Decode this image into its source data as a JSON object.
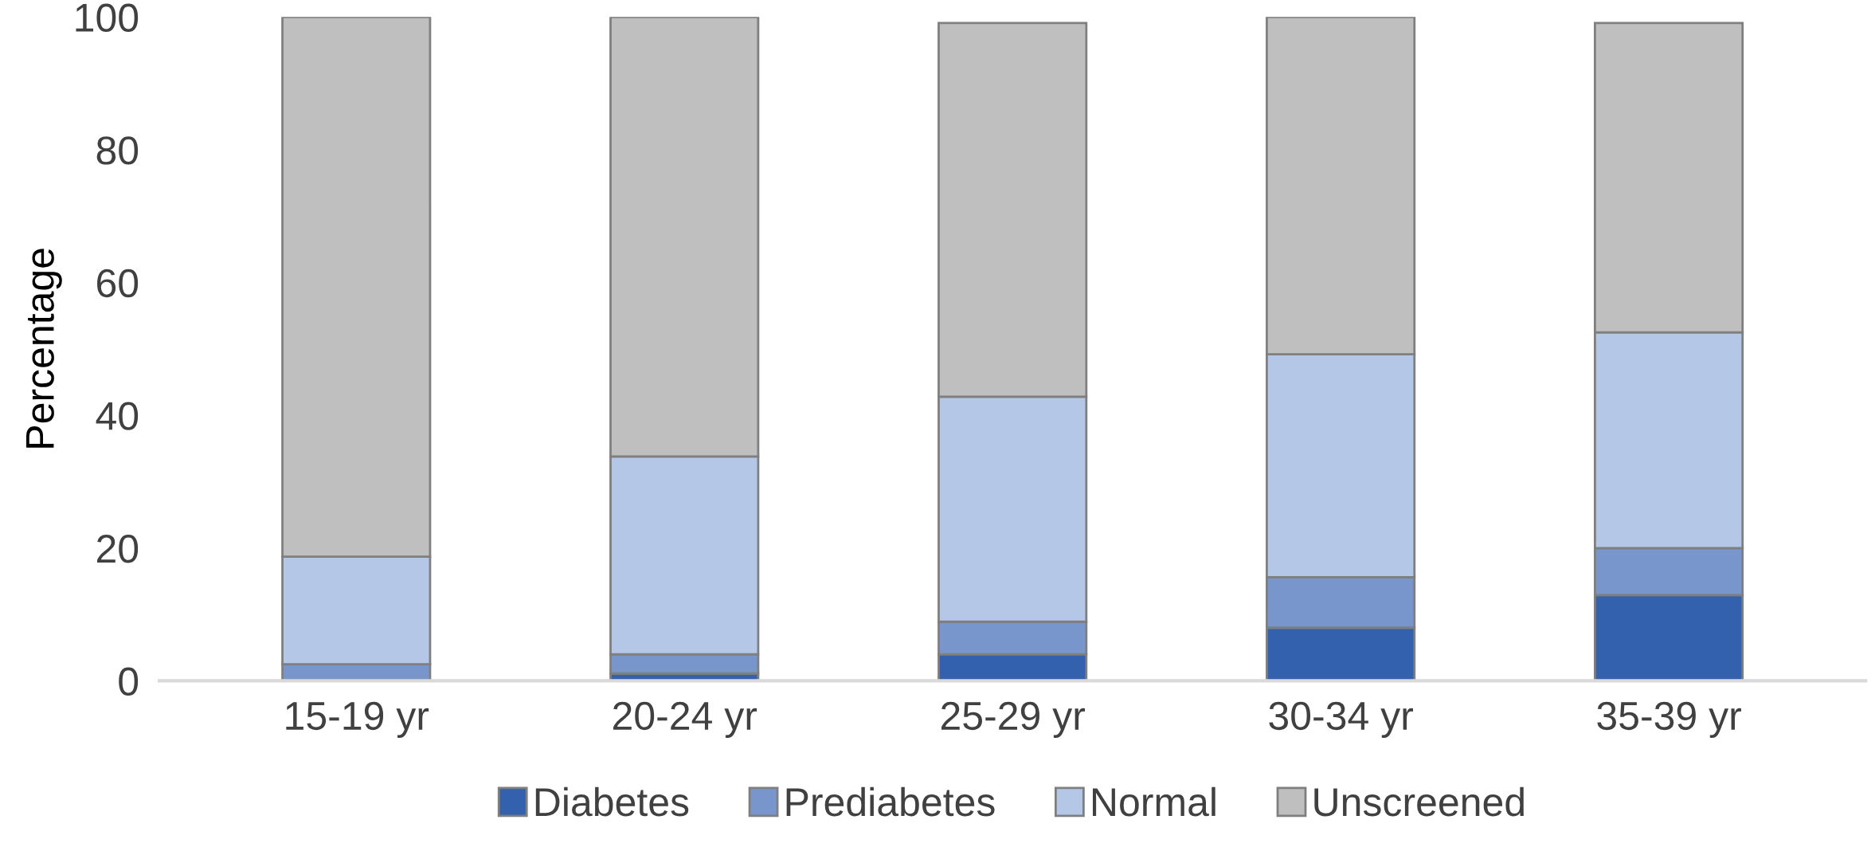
{
  "chart_data": {
    "type": "bar",
    "stacked": true,
    "ylabel": "Percentage",
    "categories": [
      "15-19 yr",
      "20-24 yr",
      "25-29 yr",
      "30-34 yr",
      "35-39 yr"
    ],
    "series": [
      {
        "name": "Diabetes",
        "color": "#3361ad",
        "values": [
          0,
          1.1,
          4.0,
          8.0,
          12.9
        ]
      },
      {
        "name": "Prediabetes",
        "color": "#7896cb",
        "values": [
          2.5,
          2.9,
          4.9,
          7.6,
          7.1
        ]
      },
      {
        "name": "Normal",
        "color": "#b4c7e7",
        "values": [
          16.2,
          29.8,
          33.9,
          33.6,
          32.5
        ]
      },
      {
        "name": "Unscreened",
        "color": "#bfbfbf",
        "values": [
          81.3,
          66.2,
          56.3,
          50.8,
          46.6
        ]
      }
    ],
    "ylim": [
      0,
      100
    ],
    "yticks": [
      0,
      20,
      40,
      60,
      80,
      100
    ],
    "grid": false,
    "legend": "bottom"
  }
}
